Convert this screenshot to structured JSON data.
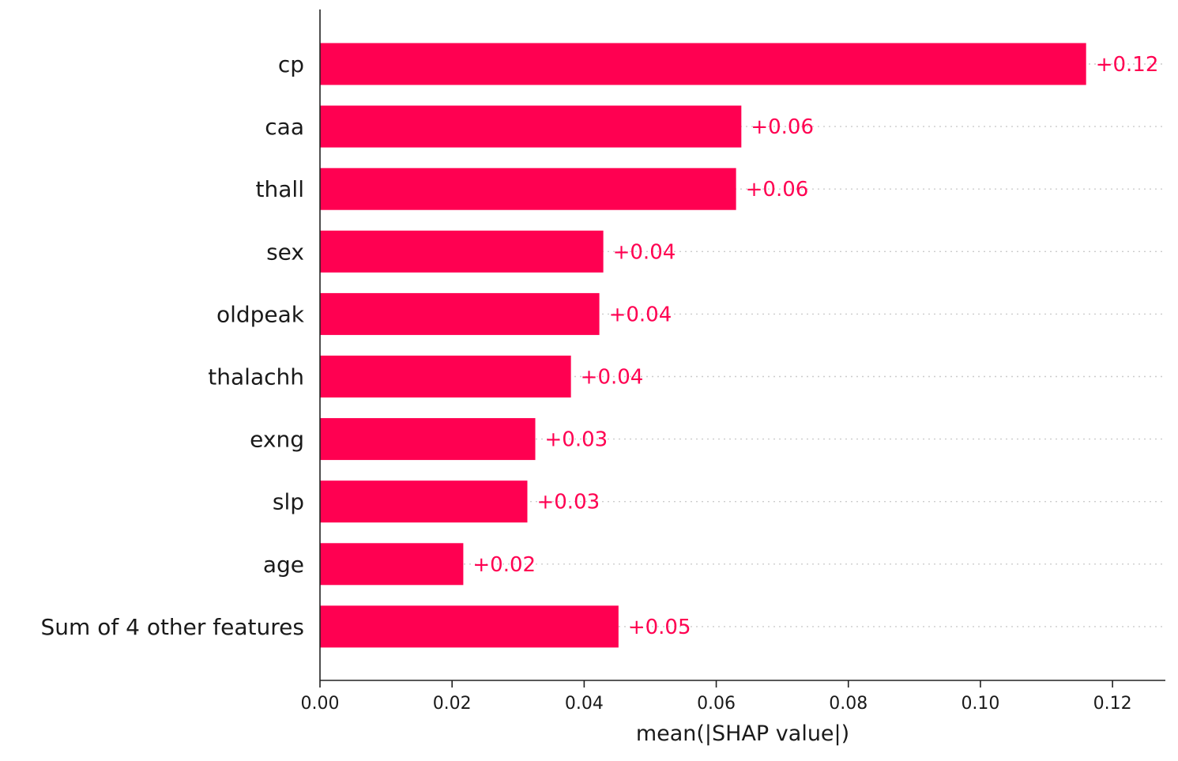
{
  "chart_data": {
    "type": "bar",
    "orientation": "horizontal",
    "categories": [
      "cp",
      "caa",
      "thall",
      "sex",
      "oldpeak",
      "thalachh",
      "exng",
      "slp",
      "age",
      "Sum of 4 other features"
    ],
    "values": [
      0.116,
      0.0638,
      0.063,
      0.0429,
      0.0423,
      0.038,
      0.0326,
      0.0314,
      0.0217,
      0.0452
    ],
    "value_labels": [
      "+0.12",
      "+0.06",
      "+0.06",
      "+0.04",
      "+0.04",
      "+0.04",
      "+0.03",
      "+0.03",
      "+0.02",
      "+0.05"
    ],
    "xlabel": "mean(|SHAP value|)",
    "ylabel": "",
    "title": "",
    "xlim": [
      0,
      0.128
    ],
    "xticks": [
      0.0,
      0.02,
      0.04,
      0.06,
      0.08,
      0.1,
      0.12
    ],
    "xtick_labels": [
      "0.00",
      "0.02",
      "0.04",
      "0.06",
      "0.08",
      "0.10",
      "0.12"
    ],
    "grid": "dotted horizontal guide lines",
    "legend": "none",
    "colors": {
      "bar": "#ff0051",
      "value_label": "#ff0051",
      "text": "#1a1a1a",
      "axis": "#222222",
      "grid": "#cccccc"
    }
  }
}
